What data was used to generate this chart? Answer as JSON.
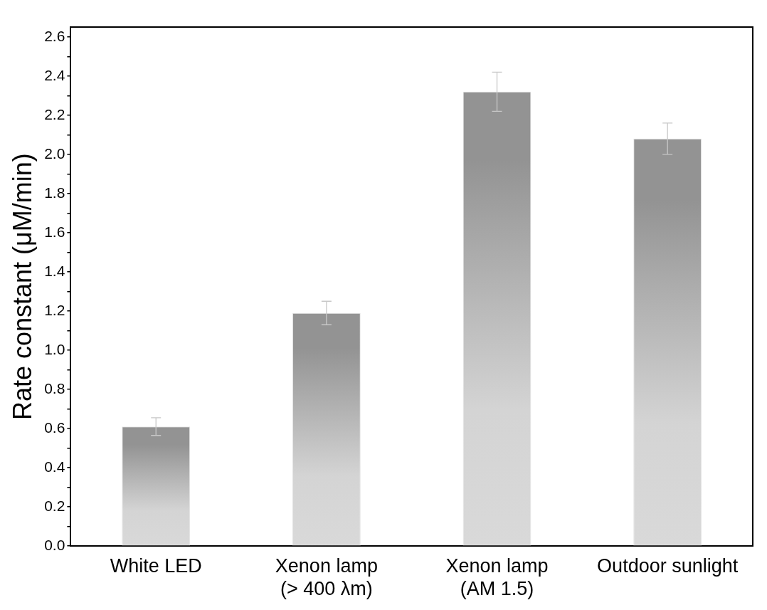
{
  "chart_data": {
    "type": "bar",
    "ylabel": "Rate constant (μM/min)",
    "categories": [
      "White LED",
      "Xenon lamp (> 400 λm)",
      "Xenon lamp (AM 1.5)",
      "Outdoor sunlight"
    ],
    "values": [
      0.61,
      1.19,
      2.32,
      2.08
    ],
    "errors": [
      0.045,
      0.06,
      0.1,
      0.08
    ],
    "color": "#939393",
    "ylim": [
      0,
      2.65
    ],
    "yticks": [
      {
        "value": 0,
        "label": "0.0"
      },
      {
        "value": 0.1,
        "label": null
      },
      0.2,
      {
        "value": 0.3,
        "label": null
      },
      0.4,
      {
        "value": 0.5,
        "label": null
      },
      0.6,
      {
        "value": 0.7,
        "label": null
      },
      0.8,
      {
        "value": 0.9,
        "label": null
      },
      {
        "value": 1,
        "label": "1.0"
      },
      {
        "value": 1.1,
        "label": null
      },
      1.2,
      {
        "value": 1.3,
        "label": null
      },
      1.4,
      {
        "value": 1.5,
        "label": null
      },
      1.6,
      {
        "value": 1.7,
        "label": null
      },
      1.8,
      {
        "value": 1.9,
        "label": null
      },
      {
        "value": 2,
        "label": "2.0"
      },
      {
        "value": 2.1,
        "label": null
      },
      2.2,
      {
        "value": 2.3,
        "label": null
      },
      2.4,
      {
        "value": 2.5,
        "label": null
      },
      2.6
    ],
    "grid": false,
    "legend": false
  }
}
